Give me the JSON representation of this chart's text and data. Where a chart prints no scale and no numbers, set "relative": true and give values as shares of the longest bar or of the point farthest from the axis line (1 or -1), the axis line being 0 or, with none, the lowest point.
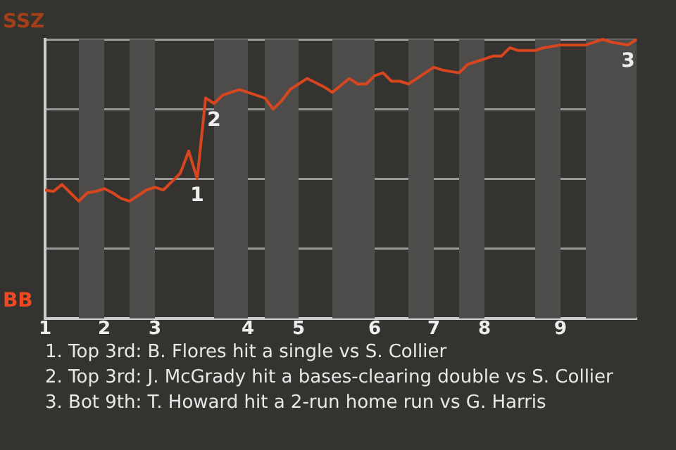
{
  "chart_data": {
    "type": "line",
    "relative": true,
    "categories": [
      "1",
      null,
      null,
      null,
      null,
      null,
      null,
      "2",
      null,
      null,
      null,
      null,
      null,
      "3",
      null,
      null,
      null,
      null,
      null,
      null,
      null,
      null,
      null,
      null,
      "4",
      null,
      null,
      null,
      null,
      null,
      "5",
      null,
      null,
      null,
      null,
      null,
      null,
      null,
      null,
      "6",
      null,
      null,
      null,
      null,
      null,
      null,
      "7",
      null,
      null,
      null,
      null,
      null,
      "8",
      null,
      null,
      null,
      null,
      null,
      null,
      null,
      null,
      "9",
      null,
      null,
      null,
      null,
      null,
      null,
      null,
      null,
      null
    ],
    "grid": "y",
    "marker": "none",
    "series": [
      {
        "color": "#d8461f",
        "values": [
          0.46,
          0.455,
          0.48,
          0.45,
          0.42,
          0.45,
          0.455,
          0.465,
          0.45,
          0.43,
          0.42,
          0.44,
          0.46,
          0.47,
          0.46,
          0.49,
          0.52,
          0.6,
          0.5,
          0.79,
          0.77,
          0.8,
          0.81,
          0.82,
          0.81,
          0.8,
          0.79,
          0.75,
          0.78,
          0.82,
          0.84,
          0.86,
          0.845,
          0.83,
          0.81,
          0.835,
          0.86,
          0.84,
          0.84,
          0.87,
          0.88,
          0.85,
          0.85,
          0.84,
          0.86,
          0.88,
          0.9,
          0.89,
          0.885,
          0.88,
          0.91,
          0.92,
          0.93,
          0.94,
          0.94,
          0.97,
          0.96,
          0.96,
          0.96,
          0.97,
          0.975,
          0.98,
          0.98,
          0.98,
          0.98,
          0.99,
          1.0,
          0.99,
          0.985,
          0.98,
          1.0
        ]
      }
    ],
    "annotations": [
      "SSZ",
      "BB",
      {
        "text": "1",
        "y": 0.5
      },
      {
        "text": "2",
        "y": 0.77
      },
      {
        "text": "3",
        "y": 0.98
      },
      "1. Top 3rd: B. Flores hit a single vs S. Collier",
      "2. Top 3rd: J. McGrady hit a bases-clearing double vs S. Collier",
      "3. Bot 9th: T. Howard hit a 2-run home run vs G. Harris"
    ]
  }
}
